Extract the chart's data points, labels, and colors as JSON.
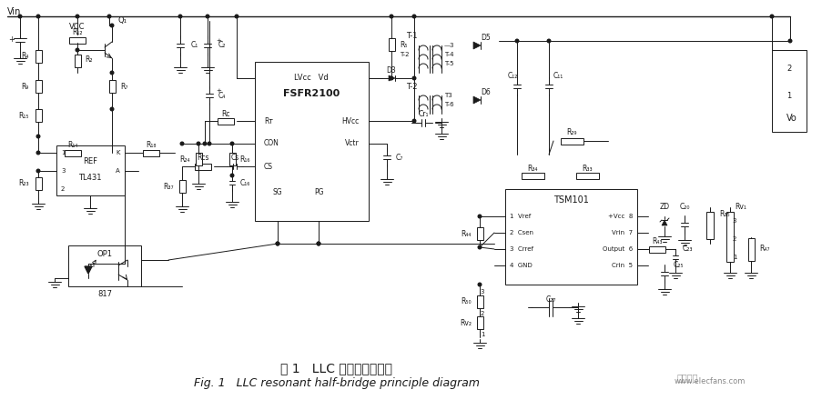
{
  "title_cn": "图 1   LLC 谐振半桥原理图",
  "title_en": "Fig. 1   LLC resonant half-bridge principle diagram",
  "watermark": "www.elecfans.com",
  "bg_color": "#ffffff",
  "line_color": "#1a1a1a",
  "figsize": [
    9.14,
    4.51
  ],
  "dpi": 100
}
